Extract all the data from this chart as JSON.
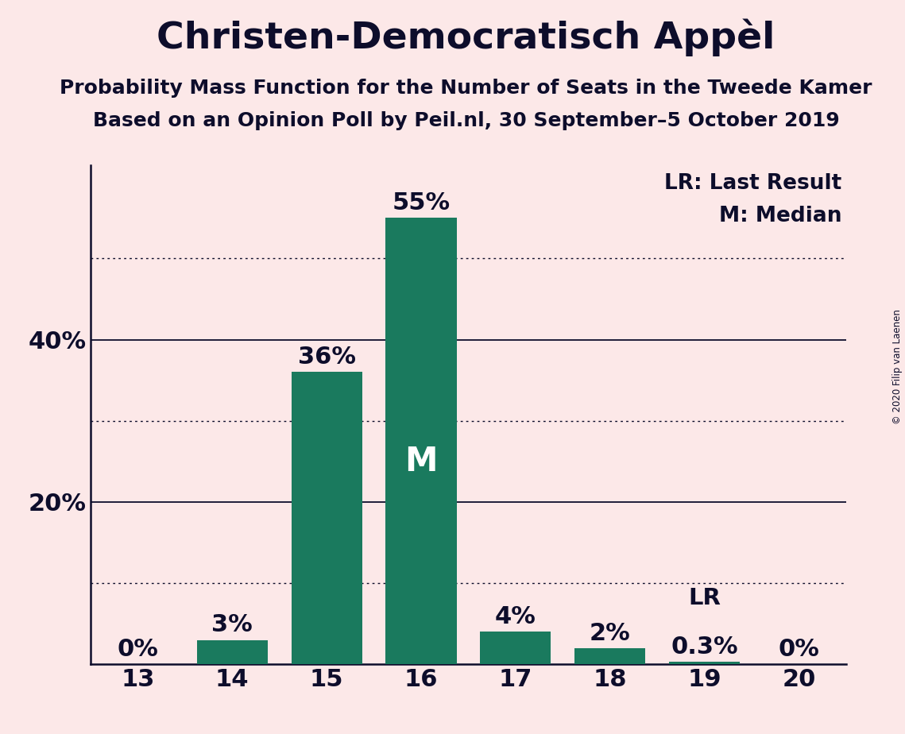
{
  "title": "Christen-Democratisch Appèl",
  "subtitle1": "Probability Mass Function for the Number of Seats in the Tweede Kamer",
  "subtitle2": "Based on an Opinion Poll by Peil.nl, 30 September–5 October 2019",
  "copyright": "© 2020 Filip van Laenen",
  "seats": [
    13,
    14,
    15,
    16,
    17,
    18,
    19,
    20
  ],
  "probabilities": [
    0.0,
    0.03,
    0.36,
    0.55,
    0.04,
    0.02,
    0.003,
    0.0
  ],
  "labels": [
    "0%",
    "3%",
    "36%",
    "55%",
    "4%",
    "2%",
    "0.3%",
    "0%"
  ],
  "bar_color": "#1a7a5e",
  "background_color": "#fce8e8",
  "text_color": "#0d0d2b",
  "median_seat": 16,
  "median_label": "M",
  "lr_seat": 19,
  "lr_label": "LR",
  "legend_lr": "LR: Last Result",
  "legend_m": "M: Median",
  "ylim": [
    0,
    0.615
  ],
  "dotted_yticks": [
    0.1,
    0.3,
    0.5
  ],
  "solid_yticks": [
    0.2,
    0.4
  ],
  "ytick_positions": [
    0.2,
    0.4
  ],
  "ytick_labels": [
    "20%",
    "40%"
  ],
  "title_fontsize": 34,
  "subtitle_fontsize": 18,
  "label_fontsize": 22,
  "tick_fontsize": 22,
  "legend_fontsize": 19,
  "median_fontsize": 30,
  "lr_fontsize": 21,
  "bar_width": 0.75
}
